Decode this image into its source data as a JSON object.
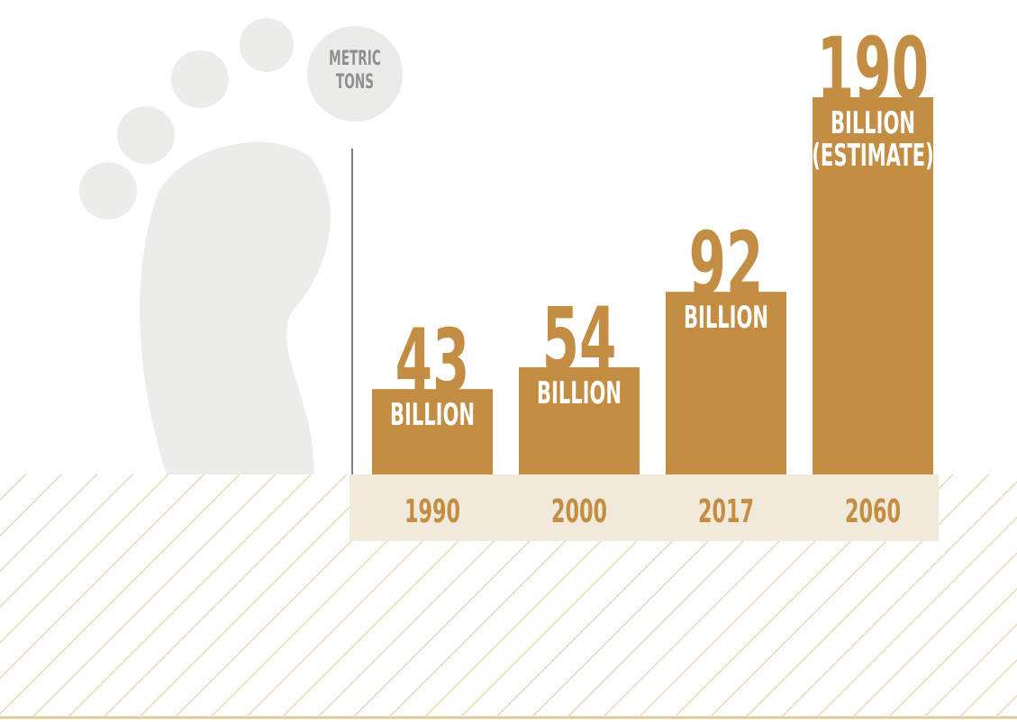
{
  "chart_data": {
    "type": "bar",
    "unit_label": [
      "METRIC",
      "TONS"
    ],
    "categories": [
      "1990",
      "2000",
      "2017",
      "2060"
    ],
    "values": [
      43,
      54,
      92,
      190
    ],
    "value_notes": [
      [
        "BILLION"
      ],
      [
        "BILLION"
      ],
      [
        "BILLION"
      ],
      [
        "BILLION",
        "(ESTIMATE)"
      ]
    ],
    "color": "#c38e44"
  }
}
